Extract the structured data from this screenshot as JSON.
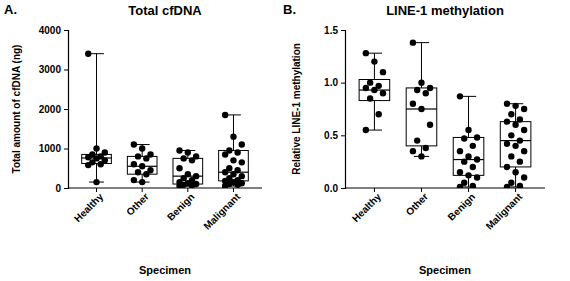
{
  "chart_data": [
    {
      "type": "box",
      "panel_label": "A.",
      "title": "Total cfDNA",
      "x_label": "Specimen",
      "y_label": "Total amount of cfDNA (ng)",
      "categories": [
        "Healthy",
        "Other",
        "Benign",
        "Malignant"
      ],
      "color": "#000000",
      "grid": false,
      "ylim": [
        0,
        4000
      ],
      "yticks": [
        0,
        1000,
        2000,
        3000,
        4000
      ],
      "stats": [
        {
          "min": 150,
          "q1": 620,
          "median": 760,
          "q3": 850,
          "max": 3400
        },
        {
          "min": 150,
          "q1": 350,
          "median": 550,
          "q3": 800,
          "max": 1100
        },
        {
          "min": 50,
          "q1": 100,
          "median": 300,
          "q3": 750,
          "max": 950
        },
        {
          "min": 50,
          "q1": 180,
          "median": 400,
          "q3": 950,
          "max": 1850
        }
      ],
      "points": [
        [
          3400,
          1000,
          900,
          850,
          800,
          780,
          750,
          700,
          650,
          600,
          580,
          150
        ],
        [
          1100,
          1000,
          850,
          800,
          750,
          600,
          550,
          450,
          400,
          350,
          200,
          150
        ],
        [
          950,
          900,
          800,
          750,
          700,
          500,
          350,
          300,
          250,
          200,
          150,
          120,
          100,
          80,
          60,
          50
        ],
        [
          1850,
          1300,
          1100,
          950,
          900,
          850,
          700,
          650,
          500,
          450,
          400,
          350,
          300,
          250,
          200,
          180,
          150,
          120,
          100,
          80,
          50
        ]
      ]
    },
    {
      "type": "box",
      "panel_label": "B.",
      "title": "LINE-1 methylation",
      "x_label": "Specimen",
      "y_label": "Relative LINE-1 methylation",
      "categories": [
        "Healthy",
        "Other",
        "Benign",
        "Malignant"
      ],
      "color": "#000000",
      "grid": false,
      "ylim": [
        0,
        1.5
      ],
      "yticks": [
        {
          "value": 0,
          "label": "0.0"
        },
        {
          "value": 0.5,
          "label": "0.5"
        },
        {
          "value": 1,
          "label": "1.0"
        },
        {
          "value": 1.5,
          "label": "1.5"
        }
      ],
      "stats": [
        {
          "min": 0.55,
          "q1": 0.83,
          "median": 0.93,
          "q3": 1.03,
          "max": 1.28
        },
        {
          "min": 0.3,
          "q1": 0.4,
          "median": 0.75,
          "q3": 0.95,
          "max": 1.38
        },
        {
          "min": 0.01,
          "q1": 0.12,
          "median": 0.27,
          "q3": 0.48,
          "max": 0.87
        },
        {
          "min": 0.01,
          "q1": 0.2,
          "median": 0.45,
          "q3": 0.63,
          "max": 0.8
        }
      ],
      "points": [
        [
          1.28,
          1.2,
          1.1,
          1.0,
          0.97,
          0.95,
          0.93,
          0.9,
          0.85,
          0.7,
          0.55
        ],
        [
          1.38,
          1.0,
          0.95,
          0.93,
          0.9,
          0.8,
          0.75,
          0.6,
          0.45,
          0.38,
          0.35,
          0.3
        ],
        [
          0.87,
          0.55,
          0.48,
          0.47,
          0.4,
          0.35,
          0.3,
          0.27,
          0.25,
          0.2,
          0.15,
          0.12,
          0.1,
          0.05,
          0.02,
          0.01
        ],
        [
          0.8,
          0.78,
          0.75,
          0.7,
          0.65,
          0.63,
          0.6,
          0.55,
          0.5,
          0.45,
          0.42,
          0.4,
          0.35,
          0.3,
          0.25,
          0.2,
          0.15,
          0.1,
          0.05,
          0.02,
          0.01
        ]
      ]
    }
  ]
}
